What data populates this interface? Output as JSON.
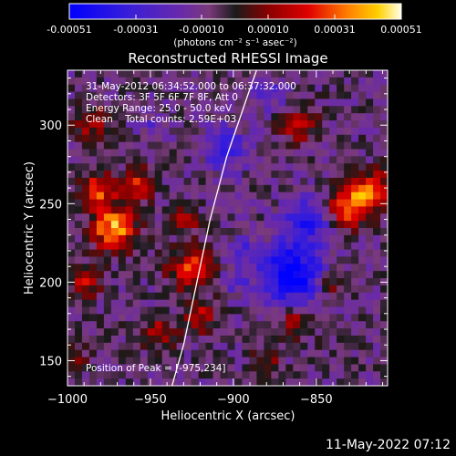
{
  "colorbar": {
    "ticks": [
      "-0.00051",
      "-0.00031",
      "-0.00010",
      "0.00010",
      "0.00031",
      "0.00051"
    ],
    "units": "(photons cm⁻² s⁻¹ asec⁻²)"
  },
  "footer_date": "11-May-2022 07:12",
  "chart_data": {
    "type": "heatmap",
    "title": "Reconstructed RHESSI Image",
    "xlabel": "Heliocentric X (arcsec)",
    "ylabel": "Heliocentric Y (arcsec)",
    "xlim": [
      -1000,
      -807
    ],
    "ylim": [
      134,
      335
    ],
    "x_ticks": [
      -1000,
      -950,
      -900,
      -850
    ],
    "y_ticks": [
      150,
      200,
      250,
      300
    ],
    "colorbar_range": [
      -0.00051,
      0.00051
    ],
    "info_lines": [
      "31-May-2012 06:34:52.000 to 06:37:32.000",
      "Detectors: 3F 5F 6F 7F 8F, Att 0",
      "Energy Range: 25.0 - 50.0 keV",
      "Clean    Total counts: 2.59E+03"
    ],
    "peak_label": "Position of Peak = [-975,234]",
    "peak_position": [
      -975,
      234
    ],
    "limb_curve": [
      [
        -937,
        134
      ],
      [
        -930,
        160
      ],
      [
        -922,
        200
      ],
      [
        -914,
        240
      ],
      [
        -904,
        280
      ],
      [
        -891,
        320
      ],
      [
        -886,
        335
      ]
    ],
    "emission_regions": [
      {
        "x": -972,
        "y": 234,
        "sigma": 9,
        "amplitude": 0.00049
      },
      {
        "x": -982,
        "y": 258,
        "sigma": 8,
        "amplitude": 0.00035
      },
      {
        "x": -958,
        "y": 262,
        "sigma": 7,
        "amplitude": 0.00028
      },
      {
        "x": -925,
        "y": 208,
        "sigma": 9,
        "amplitude": 0.00036
      },
      {
        "x": -930,
        "y": 240,
        "sigma": 6,
        "amplitude": 0.00026
      },
      {
        "x": -920,
        "y": 178,
        "sigma": 7,
        "amplitude": 0.00025
      },
      {
        "x": -945,
        "y": 168,
        "sigma": 7,
        "amplitude": 0.00022
      },
      {
        "x": -990,
        "y": 200,
        "sigma": 7,
        "amplitude": 0.00024
      },
      {
        "x": -830,
        "y": 248,
        "sigma": 9,
        "amplitude": 0.00042
      },
      {
        "x": -815,
        "y": 258,
        "sigma": 8,
        "amplitude": 0.00038
      },
      {
        "x": -862,
        "y": 175,
        "sigma": 7,
        "amplitude": 0.00024
      },
      {
        "x": -840,
        "y": 200,
        "sigma": 6,
        "amplitude": 0.0002
      },
      {
        "x": -860,
        "y": 300,
        "sigma": 8,
        "amplitude": 0.00024
      },
      {
        "x": -985,
        "y": 300,
        "sigma": 8,
        "amplitude": 0.0002
      },
      {
        "x": -880,
        "y": 150,
        "sigma": 6,
        "amplitude": 0.00018
      },
      {
        "x": -995,
        "y": 150,
        "sigma": 6,
        "amplitude": 0.00016
      },
      {
        "x": -895,
        "y": 220,
        "sigma": 6,
        "amplitude": -0.0002
      },
      {
        "x": -865,
        "y": 205,
        "sigma": 14,
        "amplitude": -0.00045
      },
      {
        "x": -855,
        "y": 240,
        "sigma": 10,
        "amplitude": -0.0003
      },
      {
        "x": -905,
        "y": 285,
        "sigma": 10,
        "amplitude": -0.00024
      },
      {
        "x": -880,
        "y": 320,
        "sigma": 8,
        "amplitude": -0.00018
      },
      {
        "x": -948,
        "y": 300,
        "sigma": 7,
        "amplitude": -0.00012
      },
      {
        "x": -900,
        "y": 200,
        "sigma": 6,
        "amplitude": -0.00014
      }
    ]
  }
}
